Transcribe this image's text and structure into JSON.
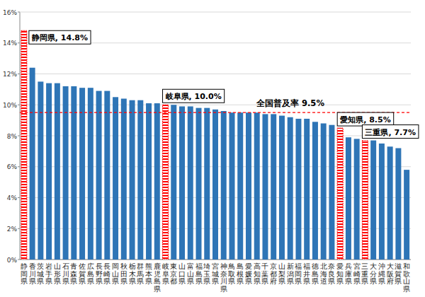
{
  "chart_data": {
    "type": "bar",
    "categories": [
      "静岡県",
      "香川県",
      "茨城県",
      "岩手県",
      "山形県",
      "石川県",
      "青森県",
      "佐賀県",
      "広島県",
      "長野県",
      "長崎県",
      "岡山県",
      "秋田県",
      "栃木県",
      "群馬県",
      "熊本県",
      "鹿児島県",
      "岐阜県",
      "東京都",
      "山口県",
      "富山県",
      "福島県",
      "埼玉県",
      "宮城県",
      "神奈川県",
      "鳥取県",
      "島根県",
      "愛媛県",
      "高知県",
      "千葉県",
      "京都府",
      "山梨県",
      "新潟県",
      "福岡県",
      "福井県",
      "徳島県",
      "北海道",
      "奈良県",
      "愛知県",
      "兵庫県",
      "宮崎県",
      "三重県",
      "大分県",
      "沖縄県",
      "大阪府",
      "滋賀県",
      "和歌山県"
    ],
    "values": [
      14.8,
      12.4,
      11.5,
      11.4,
      11.4,
      11.2,
      11.2,
      11.1,
      11.1,
      10.9,
      10.9,
      10.5,
      10.4,
      10.3,
      10.3,
      10.1,
      10.1,
      10.0,
      10.0,
      9.9,
      9.9,
      9.8,
      9.8,
      9.7,
      9.6,
      9.5,
      9.5,
      9.5,
      9.5,
      9.4,
      9.4,
      9.3,
      9.2,
      9.1,
      9.1,
      8.9,
      8.8,
      8.7,
      8.5,
      7.9,
      7.8,
      7.7,
      7.7,
      7.5,
      7.3,
      7.2,
      5.8
    ],
    "color": "#2e75b6",
    "colors": [
      "#ff0000",
      "#2e75b6",
      "#2e75b6",
      "#2e75b6",
      "#2e75b6",
      "#2e75b6",
      "#2e75b6",
      "#2e75b6",
      "#2e75b6",
      "#2e75b6",
      "#2e75b6",
      "#2e75b6",
      "#2e75b6",
      "#2e75b6",
      "#2e75b6",
      "#2e75b6",
      "#2e75b6",
      "#ff0000",
      "#2e75b6",
      "#2e75b6",
      "#2e75b6",
      "#2e75b6",
      "#2e75b6",
      "#2e75b6",
      "#2e75b6",
      "#2e75b6",
      "#2e75b6",
      "#2e75b6",
      "#2e75b6",
      "#2e75b6",
      "#2e75b6",
      "#2e75b6",
      "#2e75b6",
      "#2e75b6",
      "#2e75b6",
      "#2e75b6",
      "#2e75b6",
      "#2e75b6",
      "#ff0000",
      "#2e75b6",
      "#2e75b6",
      "#ff0000",
      "#2e75b6",
      "#2e75b6",
      "#2e75b6",
      "#2e75b6",
      "#2e75b6"
    ],
    "ylim": [
      0,
      16
    ],
    "yticks": [
      {
        "value": 0,
        "label": "0%"
      },
      {
        "value": 2,
        "label": "2%"
      },
      {
        "value": 4,
        "label": "4%"
      },
      {
        "value": 6,
        "label": "6%"
      },
      {
        "value": 8,
        "label": "8%"
      },
      {
        "value": 10,
        "label": "10%"
      },
      {
        "value": 12,
        "label": "12%"
      },
      {
        "value": 14,
        "label": "14%"
      },
      {
        "value": 16,
        "label": "16%"
      }
    ],
    "grid": true,
    "reference_line": {
      "value": 9.5,
      "label": "全国普及率 9.5%"
    },
    "annotations": [
      {
        "category": "静岡県",
        "text": "静岡県, 14.8%"
      },
      {
        "category": "岐阜県",
        "text": "岐阜県, 10.0%"
      },
      {
        "category": "愛知県",
        "text": "愛知県, 8.5%"
      },
      {
        "category": "三重県",
        "text": "三重県, 7.7%"
      }
    ]
  }
}
